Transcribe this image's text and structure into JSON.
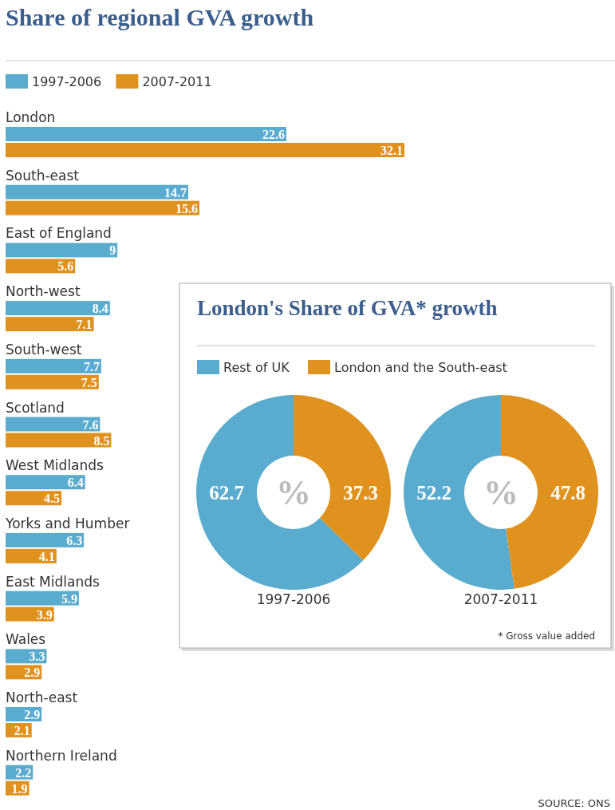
{
  "chart_data": [
    {
      "type": "bar",
      "orientation": "horizontal",
      "title": "Share of regional GVA growth",
      "categories": [
        "London",
        "South-east",
        "East of England",
        "North-west",
        "South-west",
        "Scotland",
        "West Midlands",
        "Yorks and Humber",
        "East Midlands",
        "Wales",
        "North-east",
        "Northern Ireland"
      ],
      "series": [
        {
          "name": "1997-2006",
          "color": "#5aaccf",
          "values": [
            22.6,
            14.7,
            9,
            8.4,
            7.7,
            7.6,
            6.4,
            6.3,
            5.9,
            3.3,
            2.9,
            2.2
          ]
        },
        {
          "name": "2007-2011",
          "color": "#e0921f",
          "values": [
            32.1,
            15.6,
            5.6,
            7.1,
            7.5,
            8.5,
            4.5,
            4.1,
            3.9,
            2.9,
            2.1,
            1.9
          ]
        }
      ],
      "data_labels": true,
      "legend": "top left",
      "annotations": [
        "SOURCE: ONS"
      ]
    },
    {
      "type": "donut",
      "title": "London's Share of GVA* growth",
      "xlabel": "1997-2006",
      "categories": [
        "Rest of UK",
        "London and the South-east"
      ],
      "values": [
        62.7,
        37.3
      ],
      "colors": [
        "#5aaccf",
        "#e0921f"
      ],
      "data_labels": true,
      "legend": "top right",
      "annotations": [
        "%"
      ]
    },
    {
      "type": "donut",
      "xlabel": "2007-2011",
      "categories": [
        null,
        null
      ],
      "values": [
        52.2,
        47.8
      ],
      "colors": [
        "#5aaccf",
        "#e0921f"
      ],
      "data_labels": true,
      "annotations": [
        "%",
        "* Gross value added"
      ]
    }
  ]
}
